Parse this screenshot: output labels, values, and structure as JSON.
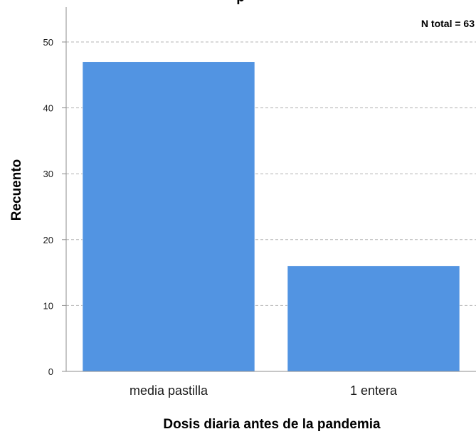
{
  "chart_data": {
    "type": "bar",
    "title_fragment": "p",
    "categories": [
      "media pastilla",
      "1 entera"
    ],
    "values": [
      47,
      16
    ],
    "xlabel": "Dosis diaria antes de la pandemia",
    "ylabel": "Recuento",
    "ylim": [
      0,
      55
    ],
    "yticks": [
      0,
      10,
      20,
      30,
      40,
      50
    ],
    "annotation": "N total =  63",
    "grid": true,
    "bar_color": "#5294e2",
    "grid_color": "#b4b4b4",
    "axis_color": "#8c8c8c"
  }
}
